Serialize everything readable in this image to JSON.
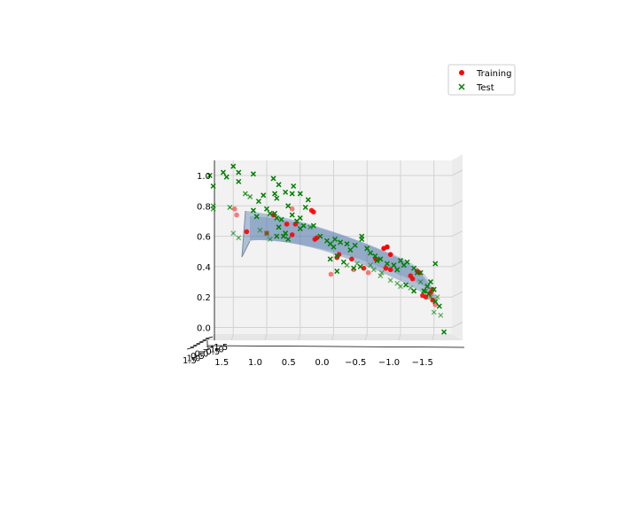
{
  "chart_data": {
    "type": "scatter",
    "projection": "3d",
    "view": "nearly edge-on, looking along depth axis",
    "x_axis": {
      "ticks": [
        1.5,
        1.0,
        0.5,
        0.0,
        -0.5,
        -1.0,
        -1.5
      ],
      "tick_labels": [
        "1.5",
        "1.0",
        "0.5",
        "0.0",
        "−0.5",
        "−1.0",
        "−1.5"
      ],
      "range": [
        1.9,
        -1.9
      ],
      "reversed": true
    },
    "z_axis": {
      "ticks": [
        0.0,
        0.2,
        0.4,
        0.6,
        0.8,
        1.0
      ],
      "tick_labels": [
        "0.0",
        "0.2",
        "0.4",
        "0.6",
        "0.8",
        "1.0"
      ],
      "range": [
        -0.07,
        1.07
      ]
    },
    "y_axis": {
      "tick_labels": [
        "1.5",
        "1.0",
        "0.5",
        "0.0",
        "−0.5",
        "−1.0",
        "−1.5"
      ],
      "note": "depth axis, ticks overlap because of viewing angle"
    },
    "grid": true,
    "legend": {
      "position": "top-right",
      "entries": [
        {
          "label": "Training",
          "marker": "circle",
          "color": "#e41a1c"
        },
        {
          "label": "Test",
          "marker": "x",
          "color": "#007f00"
        }
      ]
    },
    "surface": {
      "color": "#4c72a8",
      "opacity": 0.4,
      "description": "fitted regression surface, roughly z = 0.55 - 0.3*x"
    },
    "series": [
      {
        "name": "Training",
        "marker": "circle",
        "color": "#ff0000",
        "points": [
          [
            1.48,
            0.78,
            0.5
          ],
          [
            1.45,
            0.74,
            0.5
          ],
          [
            1.3,
            0.63,
            0.9
          ],
          [
            1.0,
            0.62,
            0.6
          ],
          [
            0.9,
            0.74,
            0.9
          ],
          [
            0.62,
            0.78,
            0.5
          ],
          [
            0.7,
            0.68,
            0.9
          ],
          [
            0.57,
            0.68,
            0.9
          ],
          [
            0.62,
            0.61,
            0.9
          ],
          [
            0.33,
            0.77,
            0.9
          ],
          [
            0.3,
            0.76,
            0.9
          ],
          [
            0.28,
            0.58,
            0.9
          ],
          [
            0.25,
            0.59,
            0.9
          ],
          [
            0.04,
            0.35,
            0.5
          ],
          [
            -0.05,
            0.46,
            0.9
          ],
          [
            -0.08,
            0.48,
            0.9
          ],
          [
            -0.27,
            0.45,
            0.9
          ],
          [
            -0.3,
            0.38,
            0.5
          ],
          [
            -0.45,
            0.39,
            0.9
          ],
          [
            -0.52,
            0.36,
            0.5
          ],
          [
            -0.63,
            0.45,
            0.9
          ],
          [
            -0.75,
            0.52,
            1.0
          ],
          [
            -0.8,
            0.53,
            1.0
          ],
          [
            -0.85,
            0.48,
            1.0
          ],
          [
            -0.78,
            0.39,
            0.9
          ],
          [
            -0.85,
            0.38,
            0.9
          ],
          [
            -1.15,
            0.34,
            0.9
          ],
          [
            -1.18,
            0.32,
            0.9
          ],
          [
            -1.25,
            0.37,
            0.9
          ],
          [
            -1.28,
            0.36,
            0.9
          ],
          [
            -1.33,
            0.21,
            0.9
          ],
          [
            -1.38,
            0.2,
            0.9
          ],
          [
            -1.45,
            0.23,
            0.9
          ],
          [
            -1.48,
            0.18,
            0.9
          ],
          [
            -1.52,
            0.15,
            0.5
          ],
          [
            -1.48,
            0.25,
            0.9
          ]
        ]
      },
      {
        "name": "Test",
        "marker": "x",
        "color": "#007f00",
        "points": [
          [
            1.8,
            0.93,
            1.0
          ],
          [
            1.65,
            1.02,
            1.0
          ],
          [
            1.6,
            0.99,
            1.0
          ],
          [
            1.85,
            1.0,
            1.0
          ],
          [
            1.5,
            1.06,
            1.0
          ],
          [
            1.42,
            1.02,
            1.0
          ],
          [
            1.42,
            0.96,
            1.0
          ],
          [
            1.8,
            0.8,
            0.7
          ],
          [
            1.8,
            0.78,
            0.7
          ],
          [
            1.55,
            0.79,
            0.7
          ],
          [
            1.32,
            0.88,
            0.7
          ],
          [
            1.25,
            0.86,
            0.7
          ],
          [
            1.2,
            1.01,
            1.0
          ],
          [
            1.05,
            0.87,
            1.0
          ],
          [
            1.12,
            0.83,
            1.0
          ],
          [
            0.9,
            0.98,
            1.0
          ],
          [
            0.88,
            0.88,
            1.0
          ],
          [
            0.82,
            0.94,
            1.0
          ],
          [
            0.85,
            0.85,
            1.0
          ],
          [
            0.72,
            0.89,
            1.0
          ],
          [
            0.62,
            0.88,
            1.0
          ],
          [
            0.6,
            0.93,
            1.0
          ],
          [
            0.5,
            0.88,
            1.0
          ],
          [
            0.42,
            0.79,
            1.0
          ],
          [
            0.38,
            0.84,
            1.0
          ],
          [
            1.2,
            0.77,
            1.0
          ],
          [
            1.15,
            0.73,
            1.0
          ],
          [
            1.0,
            0.78,
            1.0
          ],
          [
            0.95,
            0.75,
            1.0
          ],
          [
            0.88,
            0.75,
            1.0
          ],
          [
            0.85,
            0.72,
            1.0
          ],
          [
            0.78,
            0.71,
            1.0
          ],
          [
            0.68,
            0.8,
            1.0
          ],
          [
            0.62,
            0.74,
            1.0
          ],
          [
            0.5,
            0.72,
            1.0
          ],
          [
            0.45,
            0.67,
            1.0
          ],
          [
            1.5,
            0.62,
            0.5
          ],
          [
            1.42,
            0.59,
            0.5
          ],
          [
            1.1,
            0.64,
            0.5
          ],
          [
            1.0,
            0.62,
            0.5
          ],
          [
            0.95,
            0.58,
            0.5
          ],
          [
            0.85,
            0.6,
            1.0
          ],
          [
            0.82,
            0.66,
            1.0
          ],
          [
            0.75,
            0.6,
            1.0
          ],
          [
            0.72,
            0.62,
            1.0
          ],
          [
            0.68,
            0.58,
            1.0
          ],
          [
            0.55,
            0.7,
            1.0
          ],
          [
            0.5,
            0.65,
            1.0
          ],
          [
            0.35,
            0.66,
            0.5
          ],
          [
            0.3,
            0.67,
            1.0
          ],
          [
            0.2,
            0.6,
            1.0
          ],
          [
            0.1,
            0.57,
            1.0
          ],
          [
            0.05,
            0.55,
            1.0
          ],
          [
            -0.02,
            0.58,
            1.0
          ],
          [
            0.0,
            0.53,
            1.0
          ],
          [
            -0.1,
            0.56,
            1.0
          ],
          [
            -0.2,
            0.55,
            1.0
          ],
          [
            -0.25,
            0.51,
            1.0
          ],
          [
            -0.32,
            0.54,
            1.0
          ],
          [
            -0.42,
            0.6,
            1.0
          ],
          [
            -0.42,
            0.58,
            1.0
          ],
          [
            -0.5,
            0.52,
            1.0
          ],
          [
            -0.55,
            0.49,
            1.0
          ],
          [
            -0.62,
            0.47,
            1.0
          ],
          [
            -0.65,
            0.44,
            1.0
          ],
          [
            -0.7,
            0.45,
            1.0
          ],
          [
            -0.55,
            0.41,
            0.5
          ],
          [
            -0.4,
            0.4,
            1.0
          ],
          [
            -0.3,
            0.39,
            1.0
          ],
          [
            -0.2,
            0.41,
            0.5
          ],
          [
            -0.15,
            0.43,
            1.0
          ],
          [
            -0.05,
            0.47,
            1.0
          ],
          [
            0.05,
            0.45,
            1.0
          ],
          [
            -0.05,
            0.37,
            1.0
          ],
          [
            -0.35,
            0.42,
            0.5
          ],
          [
            -0.6,
            0.38,
            0.5
          ],
          [
            -0.72,
            0.36,
            0.5
          ],
          [
            -0.8,
            0.42,
            1.0
          ],
          [
            -0.9,
            0.41,
            1.0
          ],
          [
            -0.95,
            0.38,
            1.0
          ],
          [
            -1.0,
            0.44,
            1.0
          ],
          [
            -1.05,
            0.41,
            1.0
          ],
          [
            -1.1,
            0.43,
            1.0
          ],
          [
            -1.2,
            0.39,
            1.0
          ],
          [
            -1.25,
            0.36,
            1.0
          ],
          [
            -1.3,
            0.36,
            1.0
          ],
          [
            -0.7,
            0.34,
            0.5
          ],
          [
            -0.85,
            0.31,
            0.5
          ],
          [
            -0.95,
            0.29,
            0.5
          ],
          [
            -1.0,
            0.27,
            0.5
          ],
          [
            -1.08,
            0.28,
            1.0
          ],
          [
            -1.15,
            0.26,
            0.5
          ],
          [
            -1.2,
            0.24,
            1.0
          ],
          [
            -1.3,
            0.3,
            0.5
          ],
          [
            -1.4,
            0.27,
            1.0
          ],
          [
            -1.45,
            0.3,
            1.0
          ],
          [
            -1.38,
            0.24,
            0.5
          ],
          [
            -1.45,
            0.2,
            0.5
          ],
          [
            -1.52,
            0.17,
            1.0
          ],
          [
            -1.58,
            0.14,
            1.0
          ],
          [
            -1.55,
            0.2,
            0.5
          ],
          [
            -1.5,
            0.1,
            0.5
          ],
          [
            -1.6,
            0.08,
            0.5
          ],
          [
            -1.52,
            0.42,
            1.0
          ],
          [
            -1.65,
            -0.03,
            1.0
          ],
          [
            -1.35,
            0.24,
            1.0
          ],
          [
            -1.42,
            0.22,
            1.0
          ],
          [
            -1.5,
            0.25,
            1.0
          ]
        ]
      }
    ]
  }
}
